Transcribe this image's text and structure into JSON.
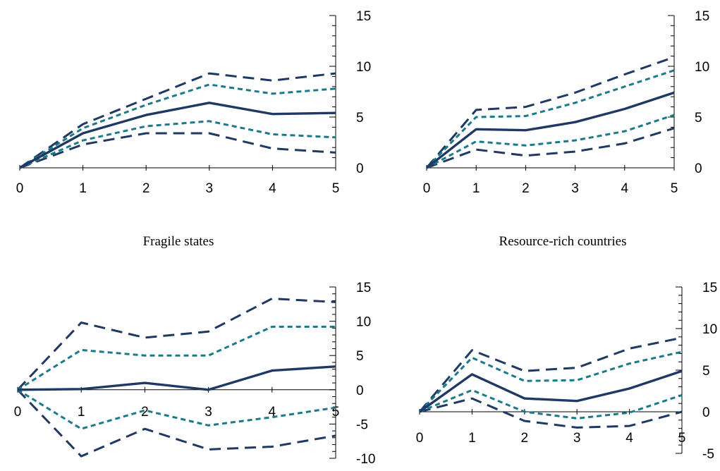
{
  "colors": {
    "central": "#1f3864",
    "outer_band": "#1f3864",
    "inner_band": "#1a7a8a",
    "axis": "#000000"
  },
  "chart_data": [
    {
      "type": "line",
      "title": "",
      "x": [
        0,
        1,
        2,
        3,
        4,
        5
      ],
      "xticks": [
        "0",
        "1",
        "2",
        "3",
        "4",
        "5"
      ],
      "ylim": [
        0,
        15
      ],
      "yticks": [
        "0",
        "5",
        "10",
        "15"
      ],
      "series": [
        {
          "role": "outer_upper",
          "values": [
            0,
            4.3,
            6.8,
            9.3,
            8.6,
            9.3
          ]
        },
        {
          "role": "inner_upper",
          "values": [
            0,
            3.9,
            6.2,
            8.2,
            7.3,
            7.8
          ]
        },
        {
          "role": "central",
          "values": [
            0,
            3.4,
            5.2,
            6.4,
            5.3,
            5.4
          ]
        },
        {
          "role": "inner_lower",
          "values": [
            0,
            2.7,
            4.1,
            4.6,
            3.3,
            3.0
          ]
        },
        {
          "role": "outer_lower",
          "values": [
            0,
            2.3,
            3.4,
            3.4,
            1.9,
            1.5
          ]
        }
      ]
    },
    {
      "type": "line",
      "title": "",
      "x": [
        0,
        1,
        2,
        3,
        4,
        5
      ],
      "xticks": [
        "0",
        "1",
        "2",
        "3",
        "4",
        "5"
      ],
      "ylim": [
        0,
        15
      ],
      "yticks": [
        "0",
        "5",
        "10",
        "15"
      ],
      "series": [
        {
          "role": "outer_upper",
          "values": [
            0,
            5.7,
            6.0,
            7.4,
            9.2,
            10.9
          ]
        },
        {
          "role": "inner_upper",
          "values": [
            0,
            5.0,
            5.1,
            6.4,
            8.0,
            9.6
          ]
        },
        {
          "role": "central",
          "values": [
            0,
            3.8,
            3.7,
            4.5,
            5.8,
            7.4
          ]
        },
        {
          "role": "inner_lower",
          "values": [
            0,
            2.6,
            2.2,
            2.7,
            3.6,
            5.2
          ]
        },
        {
          "role": "outer_lower",
          "values": [
            0,
            1.8,
            1.2,
            1.6,
            2.4,
            3.9
          ]
        }
      ]
    },
    {
      "type": "line",
      "title": "Fragile states",
      "x": [
        0,
        1,
        2,
        3,
        4,
        5
      ],
      "xticks": [
        "0",
        "1",
        "2",
        "3",
        "4",
        "5"
      ],
      "ylim": [
        -10,
        15
      ],
      "yticks": [
        "-10",
        "-5",
        "0",
        "5",
        "10",
        "15"
      ],
      "series": [
        {
          "role": "outer_upper",
          "values": [
            0,
            9.8,
            7.6,
            8.5,
            13.3,
            12.8
          ]
        },
        {
          "role": "inner_upper",
          "values": [
            0,
            5.8,
            5.0,
            5.0,
            9.2,
            9.2
          ]
        },
        {
          "role": "central",
          "values": [
            0,
            0.1,
            1.0,
            0.0,
            2.8,
            3.4
          ]
        },
        {
          "role": "inner_lower",
          "values": [
            0,
            -5.7,
            -3.0,
            -5.2,
            -4.0,
            -2.6
          ]
        },
        {
          "role": "outer_lower",
          "values": [
            0,
            -9.7,
            -5.7,
            -8.7,
            -8.3,
            -6.7
          ]
        }
      ]
    },
    {
      "type": "line",
      "title": "Resource-rich countries",
      "x": [
        0,
        1,
        2,
        3,
        4,
        5
      ],
      "xticks": [
        "0",
        "1",
        "2",
        "3",
        "4",
        "5"
      ],
      "ylim": [
        -5,
        15
      ],
      "yticks": [
        "-5",
        "0",
        "5",
        "10",
        "15"
      ],
      "series": [
        {
          "role": "outer_upper",
          "values": [
            0,
            7.4,
            4.9,
            5.3,
            7.6,
            8.9
          ]
        },
        {
          "role": "inner_upper",
          "values": [
            0,
            6.5,
            3.7,
            3.8,
            5.8,
            7.2
          ]
        },
        {
          "role": "central",
          "values": [
            0,
            4.5,
            1.6,
            1.3,
            2.8,
            4.9
          ]
        },
        {
          "role": "inner_lower",
          "values": [
            0,
            2.6,
            0.0,
            -0.8,
            -0.1,
            2.0
          ]
        },
        {
          "role": "outer_lower",
          "values": [
            0,
            1.6,
            -1.1,
            -1.9,
            -1.7,
            0.0
          ]
        }
      ]
    }
  ]
}
